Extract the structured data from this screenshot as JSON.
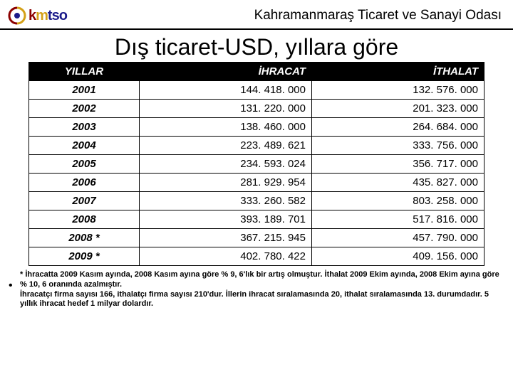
{
  "header": {
    "logo_text_k": "k",
    "logo_text_m": "m",
    "logo_text_tso": "tso",
    "org_title": "Kahramanmaraş Ticaret ve Sanayi Odası"
  },
  "title": "Dış ticaret-USD, yıllara göre",
  "table": {
    "columns": [
      "YILLAR",
      "İHRACAT",
      "İTHALAT"
    ],
    "rows": [
      {
        "year": "2001",
        "ihracat": "144. 418. 000",
        "ithalat": "132. 576. 000"
      },
      {
        "year": "2002",
        "ihracat": "131. 220. 000",
        "ithalat": "201. 323. 000"
      },
      {
        "year": "2003",
        "ihracat": "138. 460. 000",
        "ithalat": "264. 684. 000"
      },
      {
        "year": "2004",
        "ihracat": "223. 489. 621",
        "ithalat": "333. 756. 000"
      },
      {
        "year": "2005",
        "ihracat": "234. 593. 024",
        "ithalat": "356. 717. 000"
      },
      {
        "year": "2006",
        "ihracat": "281. 929. 954",
        "ithalat": "435. 827. 000"
      },
      {
        "year": "2007",
        "ihracat": "333. 260. 582",
        "ithalat": "803. 258. 000"
      },
      {
        "year": "2008",
        "ihracat": "393. 189. 701",
        "ithalat": "517. 816. 000"
      },
      {
        "year": "2008 *",
        "ihracat": "367. 215. 945",
        "ithalat": "457. 790. 000"
      },
      {
        "year": "2009 *",
        "ihracat": "402. 780. 422",
        "ithalat": "409. 156. 000"
      }
    ]
  },
  "footnotes": {
    "line1": "* İhracatta 2009 Kasım ayında, 2008 Kasım ayına göre % 9, 6'lık bir artış olmuştur. İthalat 2009 Ekim ayında, 2008 Ekim ayına göre % 10, 6 oranında azalmıştır.",
    "line2": "İhracatçı firma sayısı 166, ithalatçı firma sayısı 210'dur. İllerin ihracat sıralamasında 20, ithalat sıralamasında 13. durumdadır. 5 yıllık ihracat hedef 1 milyar dolardır."
  },
  "colors": {
    "header_bg": "#000000",
    "header_fg": "#ffffff",
    "border": "#000000",
    "logo_k": "#8b0000",
    "logo_m": "#d4a017",
    "logo_tso": "#1a1a8a"
  }
}
